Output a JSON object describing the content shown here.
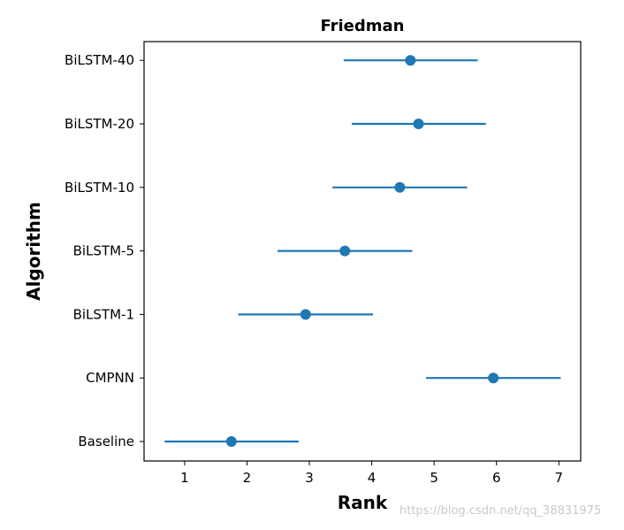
{
  "chart_data": {
    "type": "scatter",
    "title": "Friedman",
    "xlabel": "Rank",
    "ylabel": "Algorithm",
    "xlim": [
      0.35,
      7.35
    ],
    "xticks": [
      1,
      2,
      3,
      4,
      5,
      6,
      7
    ],
    "categories": [
      "Baseline",
      "CMPNN",
      "BiLSTM-1",
      "BiLSTM-5",
      "BiLSTM-10",
      "BiLSTM-20",
      "BiLSTM-40"
    ],
    "series": [
      {
        "values": [
          1.75,
          5.95,
          2.94,
          3.57,
          4.45,
          4.75,
          4.62
        ],
        "error_low": [
          0.68,
          4.87,
          1.86,
          2.49,
          3.37,
          3.68,
          3.55
        ],
        "error_high": [
          2.83,
          7.03,
          4.02,
          4.65,
          5.53,
          5.83,
          5.7
        ]
      }
    ],
    "grid": false,
    "color": "#1f77b4"
  },
  "watermark": "https://blog.csdn.net/qq_38831975"
}
